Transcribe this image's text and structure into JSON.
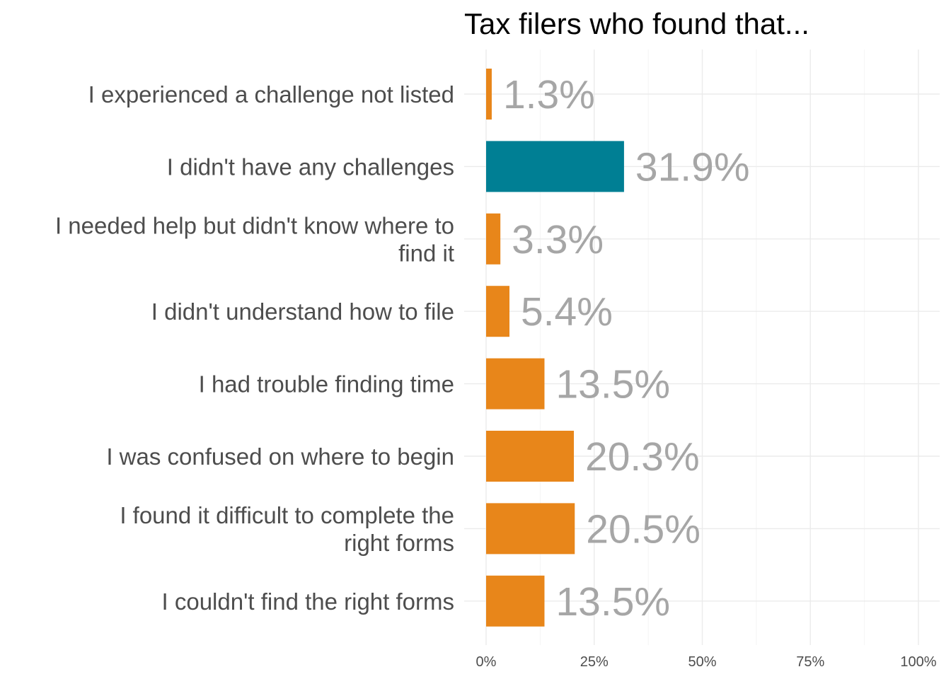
{
  "chart_data": {
    "type": "bar",
    "orientation": "horizontal",
    "title": "Tax filers who found that...",
    "categories": [
      [
        "I experienced a challenge not listed"
      ],
      [
        "I didn't have any challenges"
      ],
      [
        "I needed help but didn't know where to",
        "find it"
      ],
      [
        "I didn't understand how to file"
      ],
      [
        "I had trouble finding time"
      ],
      [
        "I was confused on where to begin"
      ],
      [
        "I found it difficult to complete the",
        "right forms"
      ],
      [
        "I couldn't find the right forms"
      ]
    ],
    "values": [
      1.3,
      31.9,
      3.3,
      5.4,
      13.5,
      20.3,
      20.5,
      13.5
    ],
    "data_labels": [
      "1.3%",
      "31.9%",
      "3.3%",
      "5.4%",
      "13.5%",
      "20.3%",
      "20.5%",
      "13.5%"
    ],
    "highlight": [
      false,
      true,
      false,
      false,
      false,
      false,
      false,
      false
    ],
    "x_ticks": [
      0,
      25,
      50,
      75,
      100
    ],
    "x_tick_labels": [
      "0%",
      "25%",
      "50%",
      "75%",
      "100%"
    ],
    "xlim": [
      0,
      105
    ],
    "grid": true,
    "legend": "none",
    "colors": {
      "bar": "#E8861A",
      "highlight_bar": "#007F94",
      "data_label": "#A6A6A6",
      "grid": "#EBEBEB"
    }
  }
}
